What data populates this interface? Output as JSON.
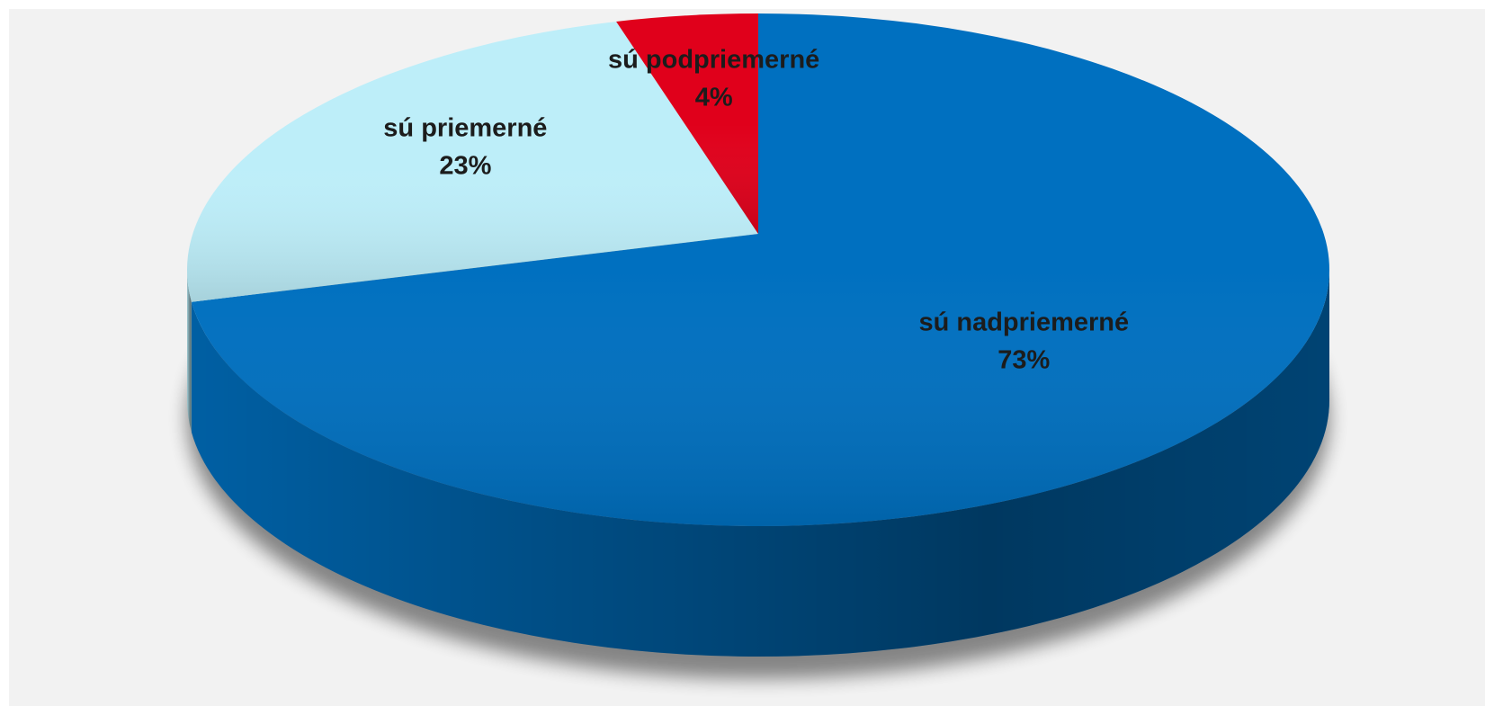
{
  "chart_data": {
    "type": "pie",
    "categories": [
      "sú nadpriemerné",
      "sú priemerné",
      "sú podpriemerné"
    ],
    "values": [
      73,
      23,
      4
    ],
    "value_labels": [
      "73%",
      "23%",
      "4%"
    ],
    "colors": [
      "#0070c0",
      "#bdeef9",
      "#e0001b"
    ]
  }
}
